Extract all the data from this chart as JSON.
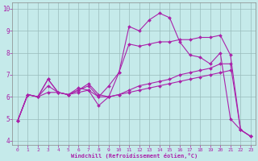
{
  "xlabel": "Windchill (Refroidissement éolien,°C)",
  "xlim": [
    -0.5,
    23.5
  ],
  "ylim": [
    3.8,
    10.3
  ],
  "xticks": [
    0,
    1,
    2,
    3,
    4,
    5,
    6,
    7,
    8,
    9,
    10,
    11,
    12,
    13,
    14,
    15,
    16,
    17,
    18,
    19,
    20,
    21,
    22,
    23
  ],
  "yticks": [
    4,
    5,
    6,
    7,
    8,
    9,
    10
  ],
  "bg_color": "#c5eaea",
  "line_color": "#aa22aa",
  "grid_color": "#99bbbb",
  "lines": [
    {
      "x": [
        0,
        1,
        2,
        3,
        4,
        5,
        6,
        7,
        8,
        9,
        10,
        11,
        12,
        13,
        14,
        15,
        16,
        17,
        18,
        19,
        20,
        21,
        22,
        23
      ],
      "y": [
        4.9,
        6.1,
        6.0,
        6.8,
        6.2,
        6.1,
        6.4,
        6.3,
        5.6,
        6.0,
        7.1,
        9.2,
        9.0,
        9.5,
        9.8,
        9.6,
        8.5,
        7.9,
        7.8,
        7.5,
        8.0,
        5.0,
        4.5,
        4.2
      ]
    },
    {
      "x": [
        0,
        1,
        2,
        3,
        4,
        5,
        6,
        7,
        8,
        9,
        10,
        11,
        12,
        13,
        14,
        15,
        16,
        17,
        18,
        19,
        20,
        21,
        22,
        23
      ],
      "y": [
        4.9,
        6.1,
        6.0,
        6.5,
        6.2,
        6.1,
        6.3,
        6.5,
        6.0,
        6.5,
        7.1,
        8.4,
        8.3,
        8.4,
        8.5,
        8.5,
        8.6,
        8.6,
        8.7,
        8.7,
        8.8,
        7.9,
        4.5,
        4.2
      ]
    },
    {
      "x": [
        0,
        1,
        2,
        3,
        4,
        5,
        6,
        7,
        8,
        9,
        10,
        11,
        12,
        13,
        14,
        15,
        16,
        17,
        18,
        19,
        20,
        21,
        22,
        23
      ],
      "y": [
        4.9,
        6.1,
        6.0,
        6.2,
        6.2,
        6.1,
        6.2,
        6.3,
        6.0,
        6.0,
        6.1,
        6.3,
        6.5,
        6.6,
        6.7,
        6.8,
        7.0,
        7.1,
        7.2,
        7.3,
        7.5,
        7.5,
        4.5,
        4.2
      ]
    },
    {
      "x": [
        0,
        1,
        2,
        3,
        4,
        5,
        6,
        7,
        8,
        9,
        10,
        11,
        12,
        13,
        14,
        15,
        16,
        17,
        18,
        19,
        20,
        21
      ],
      "y": [
        4.9,
        6.1,
        6.0,
        6.8,
        6.2,
        6.1,
        6.3,
        6.6,
        6.1,
        6.0,
        6.1,
        6.2,
        6.3,
        6.4,
        6.5,
        6.6,
        6.7,
        6.8,
        6.9,
        7.0,
        7.1,
        7.2
      ]
    }
  ]
}
